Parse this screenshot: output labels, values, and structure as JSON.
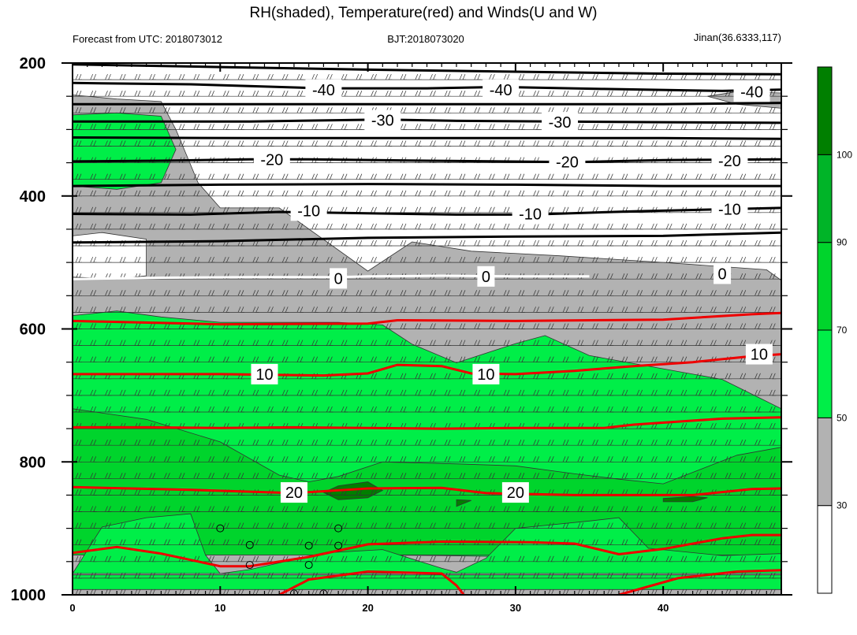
{
  "chart_data": {
    "type": "contour",
    "title": "RH(shaded), Temperature(red) and Winds(U and W)",
    "subtitle_left": "Forecast from UTC: 2018073012",
    "subtitle_center": "BJT:2018073020",
    "subtitle_right": "Jinan(36.6333,117)",
    "xlim": [
      0,
      48
    ],
    "ylim": [
      1000,
      200
    ],
    "x_ticks": [
      "0",
      "10",
      "20",
      "30",
      "40"
    ],
    "y_ticks": [
      "200",
      "400",
      "600",
      "800",
      "1000"
    ],
    "colorbar": {
      "levels": [
        "30",
        "50",
        "70",
        "90",
        "100"
      ],
      "colors": [
        "#ffffff",
        "#b2b2b2",
        "#00ee48",
        "#00d42c",
        "#00b428",
        "#007f00"
      ]
    },
    "temperature_labels_black": [
      {
        "text": "-40",
        "x": 17,
        "p": 240
      },
      {
        "text": "-40",
        "x": 29,
        "p": 240
      },
      {
        "text": "-40",
        "x": 46,
        "p": 243
      },
      {
        "text": "-30",
        "x": 21,
        "p": 286
      },
      {
        "text": "-30",
        "x": 33,
        "p": 289
      },
      {
        "text": "-20",
        "x": 13.5,
        "p": 345
      },
      {
        "text": "-20",
        "x": 33.5,
        "p": 349
      },
      {
        "text": "-20",
        "x": 44.5,
        "p": 347
      },
      {
        "text": "-10",
        "x": 16,
        "p": 422
      },
      {
        "text": "-10",
        "x": 31,
        "p": 427
      },
      {
        "text": "-10",
        "x": 44.5,
        "p": 420
      }
    ],
    "temperature_labels_zero": [
      {
        "text": "0",
        "x": 18,
        "p": 524
      },
      {
        "text": "0",
        "x": 28,
        "p": 521
      },
      {
        "text": "0",
        "x": 44,
        "p": 517
      }
    ],
    "temperature_labels_red": [
      {
        "text": "10",
        "x": 13,
        "p": 668
      },
      {
        "text": "10",
        "x": 28,
        "p": 668
      },
      {
        "text": "10",
        "x": 46.5,
        "p": 638
      },
      {
        "text": "20",
        "x": 15,
        "p": 846
      },
      {
        "text": "20",
        "x": 30,
        "p": 846
      }
    ],
    "isotherms_black": [
      [
        [
          0,
          202
        ],
        [
          10,
          206
        ],
        [
          20,
          210
        ],
        [
          30,
          213
        ],
        [
          40,
          216
        ],
        [
          48,
          217
        ]
      ],
      [
        [
          0,
          230
        ],
        [
          8,
          232
        ],
        [
          17,
          238
        ],
        [
          24,
          238
        ],
        [
          29,
          236
        ],
        [
          36,
          239
        ],
        [
          44,
          242
        ],
        [
          48,
          240
        ]
      ],
      [
        [
          0,
          262
        ],
        [
          10,
          262
        ],
        [
          20,
          262
        ],
        [
          30,
          262
        ],
        [
          40,
          262
        ],
        [
          48,
          260
        ]
      ],
      [
        [
          0,
          288
        ],
        [
          12,
          288
        ],
        [
          21,
          285
        ],
        [
          26,
          287
        ],
        [
          33,
          288
        ],
        [
          40,
          289
        ],
        [
          48,
          290
        ]
      ],
      [
        [
          0,
          312
        ],
        [
          12,
          313
        ],
        [
          20,
          313
        ],
        [
          30,
          313
        ],
        [
          40,
          313
        ],
        [
          48,
          314
        ]
      ],
      [
        [
          0,
          348
        ],
        [
          6,
          347
        ],
        [
          12,
          345
        ],
        [
          16,
          345
        ],
        [
          24,
          347
        ],
        [
          34,
          349
        ],
        [
          40,
          346
        ],
        [
          48,
          345
        ]
      ],
      [
        [
          0,
          385
        ],
        [
          10,
          383
        ],
        [
          20,
          382
        ],
        [
          30,
          383
        ],
        [
          40,
          385
        ],
        [
          48,
          385
        ]
      ],
      [
        [
          0,
          427
        ],
        [
          8,
          428
        ],
        [
          14,
          424
        ],
        [
          20,
          426
        ],
        [
          26,
          428
        ],
        [
          31,
          428
        ],
        [
          38,
          423
        ],
        [
          44,
          420
        ],
        [
          48,
          418
        ]
      ],
      [
        [
          0,
          470
        ],
        [
          10,
          468
        ],
        [
          20,
          463
        ],
        [
          30,
          461
        ],
        [
          40,
          460
        ],
        [
          48,
          455
        ]
      ]
    ],
    "isotherm_zero": [
      [
        0,
        525
      ],
      [
        6,
        523
      ],
      [
        12,
        522
      ],
      [
        18,
        522
      ],
      [
        20,
        521
      ],
      [
        25,
        520
      ],
      [
        30,
        521
      ],
      [
        35,
        521
      ]
    ],
    "isotherms_red": [
      [
        [
          0,
          588
        ],
        [
          10,
          593
        ],
        [
          20,
          592
        ],
        [
          22,
          587
        ],
        [
          30,
          588
        ],
        [
          40,
          586
        ],
        [
          46,
          578
        ],
        [
          48,
          576
        ]
      ],
      [
        [
          0,
          668
        ],
        [
          10,
          668
        ],
        [
          17,
          670
        ],
        [
          20,
          667
        ],
        [
          22,
          654
        ],
        [
          25,
          656
        ],
        [
          27,
          667
        ],
        [
          30,
          668
        ],
        [
          34,
          663
        ],
        [
          38,
          656
        ],
        [
          42,
          650
        ],
        [
          46,
          641
        ],
        [
          48,
          638
        ]
      ],
      [
        [
          0,
          748
        ],
        [
          5,
          748
        ],
        [
          10,
          749
        ],
        [
          15,
          748
        ],
        [
          20,
          749
        ],
        [
          25,
          750
        ],
        [
          30,
          749
        ],
        [
          36,
          749
        ],
        [
          38,
          744
        ],
        [
          44,
          735
        ],
        [
          48,
          733
        ]
      ],
      [
        [
          0,
          838
        ],
        [
          8,
          842
        ],
        [
          15,
          847
        ],
        [
          20,
          840
        ],
        [
          25,
          839
        ],
        [
          28,
          847
        ],
        [
          34,
          850
        ],
        [
          38,
          850
        ],
        [
          42,
          850
        ],
        [
          46,
          841
        ],
        [
          48,
          840
        ]
      ],
      [
        [
          0,
          937
        ],
        [
          3,
          928
        ],
        [
          6,
          938
        ],
        [
          10,
          957
        ],
        [
          12,
          957
        ],
        [
          16,
          943
        ],
        [
          20,
          924
        ],
        [
          25,
          920
        ],
        [
          31,
          921
        ],
        [
          34,
          923
        ],
        [
          37,
          939
        ],
        [
          40,
          931
        ],
        [
          44,
          915
        ],
        [
          46,
          910
        ],
        [
          48,
          910
        ]
      ],
      [
        [
          14,
          1000
        ],
        [
          16,
          977
        ],
        [
          20,
          965
        ],
        [
          25,
          968
        ],
        [
          26,
          986
        ],
        [
          26.5,
          1000
        ]
      ],
      [
        [
          37,
          1000
        ],
        [
          41,
          975
        ],
        [
          45,
          965
        ],
        [
          48,
          963
        ]
      ]
    ],
    "rh_polygons": [
      {
        "color": "#b2b2b2",
        "points": [
          [
            0,
            248
          ],
          [
            3,
            254
          ],
          [
            6,
            258
          ],
          [
            7,
            300
          ],
          [
            8.5,
            380
          ],
          [
            10,
            418
          ],
          [
            14,
            418
          ],
          [
            20,
            513
          ],
          [
            23,
            469
          ],
          [
            27,
            483
          ],
          [
            33,
            490
          ],
          [
            40,
            500
          ],
          [
            47,
            511
          ],
          [
            48,
            527
          ],
          [
            48,
            1000
          ],
          [
            0,
            1000
          ]
        ]
      },
      {
        "color": "#b2b2b2",
        "points": [
          [
            43,
            250
          ],
          [
            45,
            243
          ],
          [
            48,
            245
          ],
          [
            48,
            268
          ],
          [
            45,
            262
          ]
        ]
      },
      {
        "color": "#ffffff",
        "points": [
          [
            0,
            460
          ],
          [
            2,
            455
          ],
          [
            5,
            465
          ],
          [
            5,
            520
          ],
          [
            3,
            525
          ],
          [
            0,
            522
          ]
        ]
      },
      {
        "color": "#00ee48",
        "points": [
          [
            0,
            580
          ],
          [
            3,
            573
          ],
          [
            6,
            582
          ],
          [
            10,
            590
          ],
          [
            14,
            590
          ],
          [
            18,
            590
          ],
          [
            21,
            594
          ],
          [
            23,
            623
          ],
          [
            26,
            651
          ],
          [
            30,
            622
          ],
          [
            32,
            610
          ],
          [
            35,
            640
          ],
          [
            40,
            660
          ],
          [
            44,
            676
          ],
          [
            48,
            720
          ],
          [
            48,
            1000
          ],
          [
            0,
            1000
          ]
        ]
      },
      {
        "color": "#00ee48",
        "points": [
          [
            0,
            278
          ],
          [
            3,
            275
          ],
          [
            6,
            280
          ],
          [
            7,
            330
          ],
          [
            6,
            380
          ],
          [
            3,
            390
          ],
          [
            0,
            385
          ]
        ]
      },
      {
        "color": "#b2b2b2",
        "points": [
          [
            0,
            940
          ],
          [
            5,
            940
          ],
          [
            10,
            940
          ],
          [
            15,
            940
          ],
          [
            20,
            940
          ],
          [
            25,
            941
          ],
          [
            28,
            942
          ],
          [
            33,
            943
          ],
          [
            38,
            944
          ],
          [
            43,
            945
          ],
          [
            48,
            947
          ],
          [
            48,
            1000
          ],
          [
            0,
            1000
          ]
        ]
      },
      {
        "color": "#00ee48",
        "points": [
          [
            0,
            882
          ],
          [
            5,
            882
          ],
          [
            10,
            882
          ],
          [
            15,
            882
          ],
          [
            20,
            883
          ],
          [
            25,
            883
          ],
          [
            29,
            885
          ],
          [
            35,
            885
          ],
          [
            40,
            884
          ],
          [
            48,
            883
          ],
          [
            48,
            930
          ],
          [
            0,
            930
          ]
        ]
      },
      {
        "color": "#00d42c",
        "points": [
          [
            0,
            720
          ],
          [
            5,
            736
          ],
          [
            10,
            770
          ],
          [
            14,
            820
          ],
          [
            16,
            830
          ],
          [
            18,
            822
          ],
          [
            21,
            800
          ],
          [
            26,
            803
          ],
          [
            30,
            806
          ],
          [
            34,
            818
          ],
          [
            37,
            826
          ],
          [
            40,
            833
          ],
          [
            45,
            790
          ],
          [
            48,
            778
          ],
          [
            48,
            940
          ],
          [
            0,
            940
          ]
        ]
      },
      {
        "color": "#00ee48",
        "points": [
          [
            2,
            898
          ],
          [
            5,
            884
          ],
          [
            8,
            878
          ],
          [
            9,
            940
          ],
          [
            10,
            968
          ],
          [
            12,
            962
          ],
          [
            17,
            937
          ],
          [
            21,
            932
          ],
          [
            25,
            960
          ],
          [
            26,
            966
          ],
          [
            28,
            945
          ],
          [
            30,
            900
          ],
          [
            35,
            889
          ],
          [
            37,
            884
          ],
          [
            39,
            930
          ],
          [
            44,
            941
          ],
          [
            48,
            938
          ],
          [
            48,
            968
          ],
          [
            0,
            968
          ]
        ]
      },
      {
        "color": "#00ee48",
        "points": [
          [
            0,
            970
          ],
          [
            48,
            970
          ],
          [
            48,
            992
          ],
          [
            0,
            992
          ]
        ]
      },
      {
        "color": "#007f00",
        "points": [
          [
            17,
            846
          ],
          [
            18,
            836
          ],
          [
            20,
            830
          ],
          [
            21,
            843
          ],
          [
            20,
            854
          ],
          [
            18,
            857
          ]
        ]
      },
      {
        "color": "#007f00",
        "points": [
          [
            26,
            857
          ],
          [
            27,
            858
          ],
          [
            26,
            867
          ]
        ]
      },
      {
        "color": "#007f00",
        "points": [
          [
            40,
            855
          ],
          [
            42,
            852
          ],
          [
            43,
            854
          ],
          [
            42,
            860
          ],
          [
            40,
            860
          ]
        ]
      }
    ],
    "rain_markers": [
      {
        "x": 10,
        "p": 900
      },
      {
        "x": 12,
        "p": 925
      },
      {
        "x": 16,
        "p": 926
      },
      {
        "x": 18,
        "p": 900
      },
      {
        "x": 18,
        "p": 926
      },
      {
        "x": 12,
        "p": 955
      },
      {
        "x": 16,
        "p": 955
      },
      {
        "x": 15,
        "p": 998
      },
      {
        "x": 17,
        "p": 998
      }
    ]
  }
}
